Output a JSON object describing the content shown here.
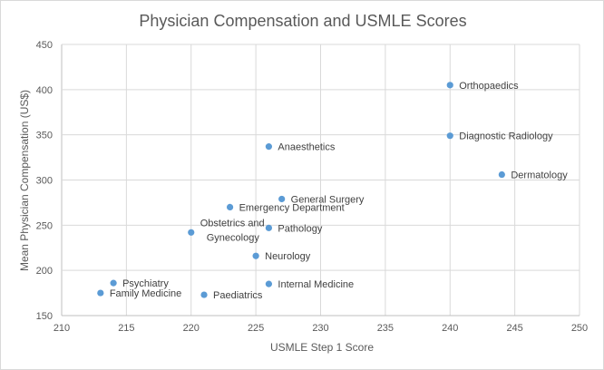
{
  "chart_data": {
    "type": "scatter",
    "title": "Physician Compensation and USMLE Scores",
    "xlabel": "USMLE Step 1 Score",
    "ylabel": "Mean Physician Compensation (US$)",
    "xlim": [
      210,
      250
    ],
    "ylim": [
      150,
      450
    ],
    "xticks": [
      210,
      215,
      220,
      225,
      230,
      235,
      240,
      245,
      250
    ],
    "yticks": [
      150,
      200,
      250,
      300,
      350,
      400,
      450
    ],
    "grid": true,
    "marker_color": "#5b9bd5",
    "points": [
      {
        "label": "Orthopaedics",
        "x": 240,
        "y": 405
      },
      {
        "label": "Diagnostic Radiology",
        "x": 240,
        "y": 349
      },
      {
        "label": "Dermatology",
        "x": 244,
        "y": 306
      },
      {
        "label": "Anaesthetics",
        "x": 226,
        "y": 337
      },
      {
        "label": "General Surgery",
        "x": 227,
        "y": 279
      },
      {
        "label": "Emergency Department",
        "x": 223,
        "y": 270
      },
      {
        "label": "Pathology",
        "x": 226,
        "y": 247
      },
      {
        "label": "Obstetrics and Gynecology",
        "x": 220,
        "y": 242
      },
      {
        "label": "Neurology",
        "x": 225,
        "y": 216
      },
      {
        "label": "Internal Medicine",
        "x": 226,
        "y": 185
      },
      {
        "label": "Psychiatry",
        "x": 214,
        "y": 186
      },
      {
        "label": "Family Medicine",
        "x": 213,
        "y": 175
      },
      {
        "label": "Paediatrics",
        "x": 221,
        "y": 173
      }
    ]
  }
}
